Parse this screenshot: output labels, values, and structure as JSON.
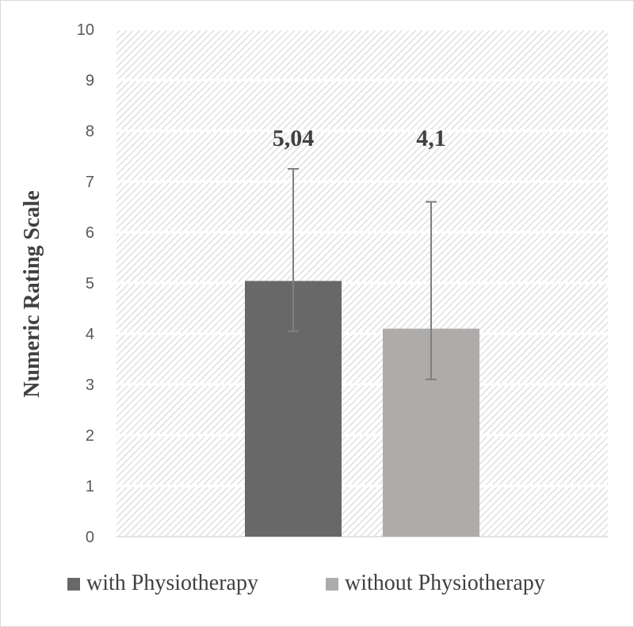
{
  "chart_data": {
    "type": "bar",
    "ylabel": "Numeric Rating Scale",
    "ylim": [
      0,
      10
    ],
    "yticks": [
      0,
      1,
      2,
      3,
      4,
      5,
      6,
      7,
      8,
      9,
      10
    ],
    "grid": true,
    "legend_position": "bottom",
    "series": [
      {
        "name": "with Physiotherapy",
        "value": 5.04,
        "label": "5,04",
        "error_low": 4.05,
        "error_high": 7.25,
        "color": "#686868"
      },
      {
        "name": "without Physiotherapy",
        "value": 4.1,
        "label": "4,1",
        "error_low": 3.1,
        "error_high": 6.6,
        "color": "#aeabab"
      }
    ],
    "colors": {
      "plot_background": "#ffffff",
      "hatch": "#d9d9d9",
      "grid": "#ffffff",
      "error_bar": "#7f7f7f"
    }
  }
}
